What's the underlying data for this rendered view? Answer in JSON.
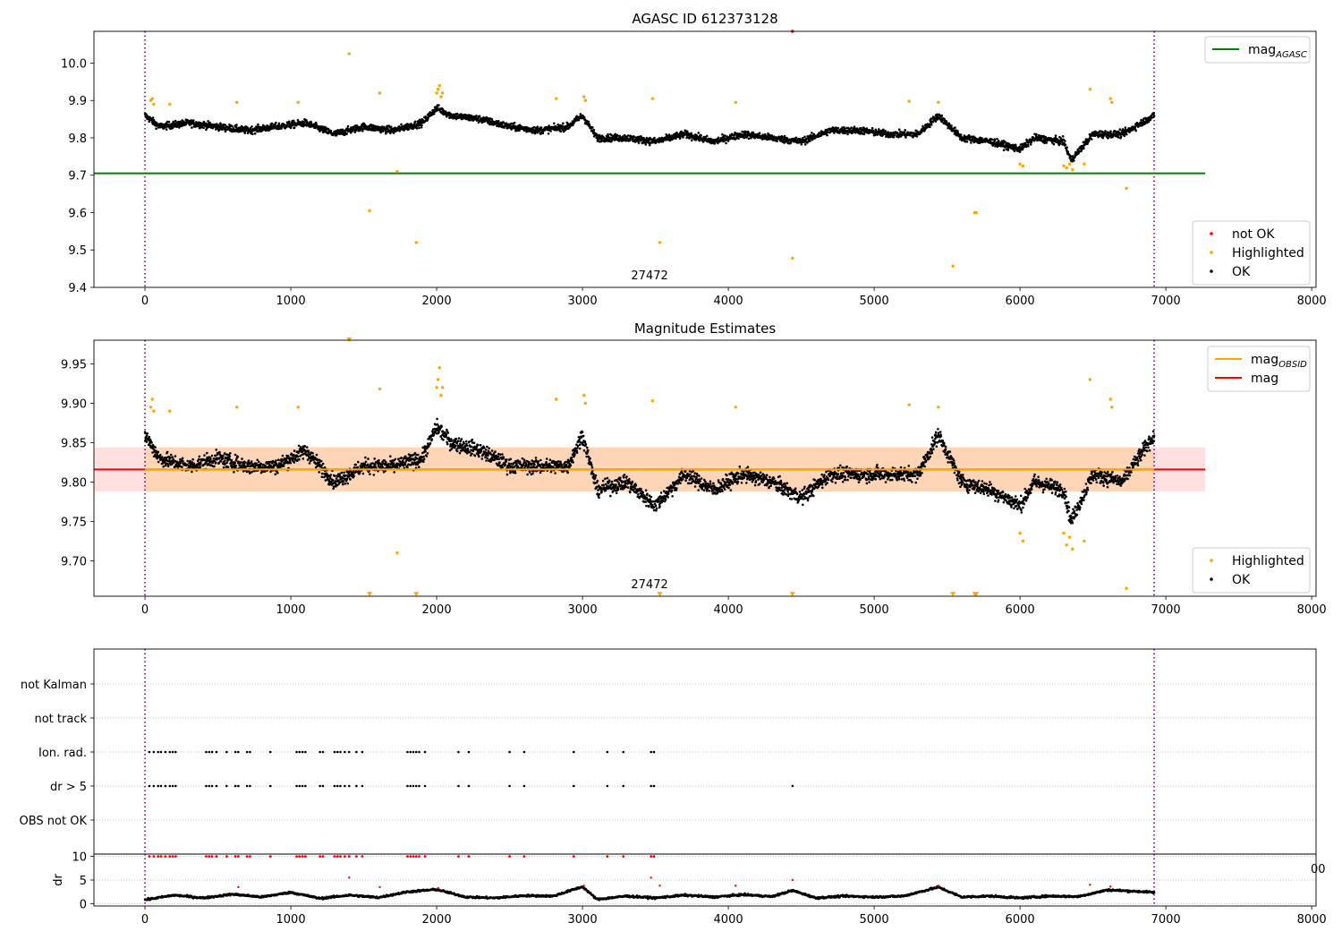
{
  "chart_data": [
    {
      "type": "scatter",
      "title": "AGASC ID 612373128",
      "xlim": [
        -350,
        8030
      ],
      "ylim": [
        9.4,
        10.085
      ],
      "xticks": [
        "0",
        "1000",
        "2000",
        "3000",
        "4000",
        "5000",
        "6000",
        "7000",
        "8000"
      ],
      "yticks": [
        "9.4",
        "9.5",
        "9.6",
        "9.7",
        "9.8",
        "9.9",
        "10.0"
      ],
      "annotation": "27472",
      "vlines": [
        0,
        6920
      ],
      "hlines": [
        {
          "name": "mag_AGASC",
          "y": 9.705,
          "x": [
            -350,
            7270
          ],
          "color": "#008000"
        }
      ],
      "legend_lines": [
        {
          "label": "mag",
          "sub": "AGASC",
          "color": "#008000"
        }
      ],
      "legend_markers": [
        {
          "label": "not OK",
          "color": "#ff0000"
        },
        {
          "label": "Highlighted",
          "color": "#ffa500"
        },
        {
          "label": "OK",
          "color": "#000000"
        }
      ],
      "series": [
        {
          "name": "OK",
          "color": "#000000",
          "style": "dense",
          "x": [
            0,
            100,
            300,
            500,
            700,
            900,
            1100,
            1300,
            1500,
            1700,
            1900,
            2000,
            2100,
            2300,
            2500,
            2700,
            2900,
            3000,
            3100,
            3300,
            3500,
            3700,
            3900,
            4100,
            4300,
            4500,
            4700,
            4900,
            5100,
            5300,
            5440,
            5600,
            5800,
            6000,
            6100,
            6300,
            6350,
            6500,
            6700,
            6920
          ],
          "y": [
            9.86,
            9.83,
            9.84,
            9.83,
            9.82,
            9.83,
            9.84,
            9.81,
            9.83,
            9.82,
            9.84,
            9.88,
            9.86,
            9.85,
            9.83,
            9.82,
            9.83,
            9.86,
            9.8,
            9.8,
            9.79,
            9.81,
            9.79,
            9.81,
            9.8,
            9.79,
            9.82,
            9.82,
            9.81,
            9.81,
            9.86,
            9.8,
            9.79,
            9.77,
            9.8,
            9.79,
            9.74,
            9.81,
            9.81,
            9.86
          ]
        },
        {
          "name": "Highlighted",
          "color": "#ffa500",
          "x": [
            40,
            50,
            60,
            170,
            630,
            1050,
            1400,
            1610,
            1730,
            1540,
            1860,
            2000,
            2010,
            2020,
            2030,
            2040,
            2820,
            3010,
            3020,
            3480,
            3530,
            4050,
            4440,
            5240,
            5440,
            5540,
            5690,
            5700,
            6000,
            6020,
            6300,
            6320,
            6340,
            6360,
            6440,
            6480,
            6620,
            6630,
            6730
          ],
          "y": [
            9.9,
            9.905,
            9.89,
            9.89,
            9.895,
            9.895,
            10.025,
            9.92,
            9.71,
            9.605,
            9.52,
            9.92,
            9.93,
            9.94,
            9.91,
            9.92,
            9.905,
            9.91,
            9.9,
            9.905,
            9.52,
            9.895,
            9.478,
            9.898,
            9.895,
            9.457,
            9.6,
            9.6,
            9.73,
            9.725,
            9.725,
            9.72,
            9.73,
            9.715,
            9.73,
            9.93,
            9.905,
            9.895,
            9.665
          ]
        },
        {
          "name": "not OK",
          "color": "#ff0000",
          "x": [
            4440
          ],
          "y": [
            10.085
          ]
        }
      ]
    },
    {
      "type": "scatter",
      "title": "Magnitude Estimates",
      "xlim": [
        -350,
        8030
      ],
      "ylim": [
        9.655,
        9.98
      ],
      "xticks": [
        "0",
        "1000",
        "2000",
        "3000",
        "4000",
        "5000",
        "6000",
        "7000",
        "8000"
      ],
      "yticks": [
        "9.70",
        "9.75",
        "9.80",
        "9.85",
        "9.90",
        "9.95"
      ],
      "annotation": "27472",
      "vlines": [
        0,
        6920
      ],
      "band": {
        "x": [
          -350,
          7270
        ],
        "y": [
          9.788,
          9.844
        ]
      },
      "hlines": [
        {
          "name": "mag",
          "y": 9.816,
          "x": [
            -350,
            7270
          ],
          "color": "#ff0000"
        }
      ],
      "legend_lines": [
        {
          "label": "mag",
          "sub": "OBSID",
          "color": "#ffa500"
        },
        {
          "label": "mag",
          "sub": "",
          "color": "#ff0000"
        }
      ],
      "legend_markers": [
        {
          "label": "Highlighted",
          "color": "#ffa500"
        },
        {
          "label": "OK",
          "color": "#000000"
        }
      ],
      "series": [
        {
          "name": "OK",
          "color": "#000000",
          "style": "dense",
          "x": [
            0,
            100,
            300,
            500,
            700,
            900,
            1100,
            1300,
            1500,
            1700,
            1900,
            2000,
            2100,
            2300,
            2500,
            2700,
            2900,
            3000,
            3100,
            3300,
            3500,
            3700,
            3900,
            4100,
            4300,
            4500,
            4700,
            4900,
            5100,
            5300,
            5440,
            5600,
            5800,
            6000,
            6100,
            6300,
            6350,
            6500,
            6700,
            6920
          ],
          "y": [
            9.86,
            9.83,
            9.82,
            9.83,
            9.82,
            9.82,
            9.84,
            9.8,
            9.82,
            9.82,
            9.83,
            9.87,
            9.85,
            9.84,
            9.82,
            9.82,
            9.82,
            9.86,
            9.79,
            9.8,
            9.77,
            9.81,
            9.79,
            9.81,
            9.8,
            9.78,
            9.81,
            9.81,
            9.81,
            9.81,
            9.86,
            9.8,
            9.79,
            9.77,
            9.8,
            9.79,
            9.75,
            9.81,
            9.8,
            9.86
          ]
        },
        {
          "name": "Highlighted",
          "color": "#ffa500",
          "x": [
            40,
            50,
            60,
            170,
            630,
            1050,
            1610,
            1730,
            2000,
            2010,
            2020,
            2030,
            2040,
            2820,
            3010,
            3020,
            3480,
            4050,
            5240,
            5440,
            6000,
            6020,
            6300,
            6320,
            6340,
            6360,
            6440,
            6480,
            6620,
            6630,
            6730
          ],
          "y": [
            9.895,
            9.905,
            9.89,
            9.89,
            9.895,
            9.895,
            9.918,
            9.71,
            9.92,
            9.93,
            9.945,
            9.91,
            9.92,
            9.905,
            9.91,
            9.9,
            9.903,
            9.895,
            9.898,
            9.895,
            9.735,
            9.725,
            9.735,
            9.72,
            9.73,
            9.715,
            9.725,
            9.93,
            9.905,
            9.895,
            9.665
          ]
        },
        {
          "name": "Highlighted (clipped)",
          "color": "#ffa500",
          "marker": "triangle-down",
          "x": [
            1400,
            1540,
            1860,
            3530,
            4440,
            5540,
            5690,
            5700
          ],
          "y": [
            9.98,
            9.657,
            9.657,
            9.657,
            9.657,
            9.657,
            9.657,
            9.657
          ]
        }
      ]
    },
    {
      "type": "scatter",
      "title": "",
      "xlim": [
        -350,
        8030
      ],
      "categories": [
        "not Kalman",
        "not track",
        "Ion. rad.",
        "dr > 5",
        "OBS not OK"
      ],
      "vlines": [
        0,
        6920
      ],
      "flag_x": [
        30,
        60,
        90,
        110,
        140,
        170,
        190,
        210,
        420,
        440,
        460,
        490,
        560,
        620,
        640,
        700,
        720,
        860,
        1040,
        1060,
        1080,
        1100,
        1200,
        1220,
        1300,
        1320,
        1340,
        1370,
        1400,
        1450,
        1490,
        1800,
        1820,
        1840,
        1860,
        1880,
        1920,
        2150,
        2220,
        2500,
        2600,
        2940,
        3170,
        3280,
        3470,
        3490
      ],
      "flag_rows": [
        "Ion. rad.",
        "dr > 5"
      ],
      "extra_flags": [
        {
          "row": "dr > 5",
          "x": 4440
        }
      ]
    },
    {
      "type": "line",
      "title": "",
      "xlim": [
        -350,
        8030
      ],
      "ylim": [
        -0.5,
        10.5
      ],
      "ylabel": "dr",
      "xticks": [
        "0",
        "1000",
        "2000",
        "3000",
        "4000",
        "5000",
        "6000",
        "7000",
        "8000"
      ],
      "yticks": [
        "0",
        "5",
        "10"
      ],
      "stray_tick": "00",
      "vlines": [
        0,
        6920
      ],
      "series": [
        {
          "name": "dr",
          "color": "#000000",
          "x": [
            0,
            200,
            400,
            600,
            800,
            1000,
            1200,
            1400,
            1600,
            1800,
            2000,
            2200,
            2400,
            2600,
            2800,
            3000,
            3100,
            3300,
            3500,
            3700,
            3900,
            4100,
            4300,
            4440,
            4600,
            4800,
            5000,
            5200,
            5440,
            5600,
            5800,
            6000,
            6200,
            6400,
            6600,
            6800,
            6920
          ],
          "y": [
            0.8,
            1.8,
            1.2,
            2.0,
            1.4,
            2.4,
            1.1,
            1.8,
            1.3,
            2.5,
            3.0,
            1.4,
            1.2,
            1.7,
            1.6,
            3.6,
            0.9,
            1.6,
            1.2,
            1.8,
            1.4,
            1.9,
            1.5,
            2.8,
            1.2,
            1.6,
            1.4,
            1.6,
            3.5,
            1.4,
            1.6,
            1.2,
            1.6,
            1.5,
            2.9,
            2.6,
            2.4
          ]
        },
        {
          "name": "flagged",
          "color": "#ff0000",
          "x": [
            30,
            60,
            90,
            110,
            140,
            170,
            190,
            210,
            420,
            440,
            460,
            490,
            560,
            620,
            640,
            700,
            720,
            860,
            1040,
            1060,
            1080,
            1100,
            1200,
            1220,
            1300,
            1320,
            1340,
            1370,
            1400,
            1450,
            1490,
            1800,
            1820,
            1840,
            1860,
            1880,
            1920,
            2150,
            2220,
            2500,
            2600,
            2940,
            3170,
            3280,
            3470,
            3490
          ],
          "y": [
            10,
            10,
            10,
            10,
            10,
            10,
            10,
            10,
            10,
            10,
            10,
            10,
            10,
            10,
            10,
            10,
            10,
            10,
            10,
            10,
            10,
            10,
            10,
            10,
            10,
            10,
            10,
            10,
            10,
            10,
            10,
            10,
            10,
            10,
            10,
            10,
            10,
            10,
            10,
            10,
            10,
            10,
            10,
            10,
            10,
            10
          ]
        },
        {
          "name": "flagged-low",
          "color": "#ff0000",
          "x": [
            640,
            1400,
            1610,
            2010,
            3010,
            3470,
            3530,
            4050,
            4440,
            5440,
            6480,
            6620
          ],
          "y": [
            3.5,
            5.5,
            3.5,
            3.3,
            3.8,
            5.5,
            3.8,
            3.8,
            5.0,
            3.8,
            4.0,
            3.6
          ]
        }
      ]
    }
  ]
}
